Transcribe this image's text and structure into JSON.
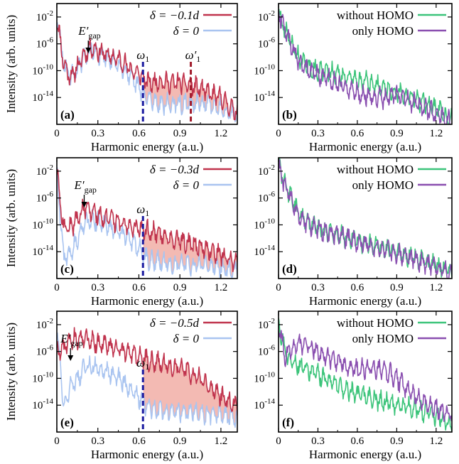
{
  "figure": {
    "x_axis_label": "Harmonic energy (a.u.)",
    "y_axis_label": "Intensity (arb. units)",
    "x_ticks": [
      "0",
      "0.3",
      "0.6",
      "0.9",
      "1.2"
    ],
    "y_ticks": [
      "10^-2",
      "10^-6",
      "10^-10",
      "10^-14"
    ],
    "colors": {
      "delta_curve": "#c0334d",
      "delta0_curve": "#a9c4f0",
      "fill": "#f0a9a0",
      "without_homo": "#3cc47a",
      "only_homo": "#8a4fb0",
      "marker": "#1a1aa0",
      "marker2": "#a01a2a"
    }
  },
  "chart_data": [
    {
      "panel": "(a)",
      "type": "line",
      "series": [
        {
          "name": "δ = −0.1d",
          "x": [
            0,
            0.05,
            0.1,
            0.15,
            0.2,
            0.25,
            0.3,
            0.35,
            0.4,
            0.45,
            0.5,
            0.55,
            0.6,
            0.65,
            0.7,
            0.75,
            0.8,
            0.85,
            0.9,
            0.95,
            1.0,
            1.05,
            1.1,
            1.15,
            1.2,
            1.25,
            1.3
          ],
          "y": [
            -2,
            -9,
            -11,
            -9.5,
            -7.5,
            -6.5,
            -7,
            -7.5,
            -8,
            -8.3,
            -9,
            -10,
            -10.5,
            -11.5,
            -11.8,
            -11.5,
            -11.8,
            -11.8,
            -11.8,
            -12,
            -12.3,
            -12.7,
            -13.2,
            -13.7,
            -14,
            -15,
            -16
          ]
        },
        {
          "name": "δ = 0",
          "x": [
            0,
            0.05,
            0.1,
            0.15,
            0.2,
            0.25,
            0.3,
            0.35,
            0.4,
            0.45,
            0.5,
            0.55,
            0.6,
            0.65,
            0.7,
            0.75,
            0.8,
            0.85,
            0.9,
            0.95,
            1.0,
            1.05,
            1.1,
            1.15,
            1.2,
            1.25,
            1.3
          ],
          "y": [
            -2,
            -9,
            -11,
            -9.8,
            -8,
            -7,
            -7.5,
            -8,
            -8.5,
            -9,
            -10,
            -11.5,
            -12.5,
            -14,
            -14.5,
            -14.8,
            -15,
            -15,
            -15,
            -15,
            -15,
            -15,
            -15,
            -15,
            -15.5,
            -16,
            -16.5
          ]
        }
      ],
      "annotations": [
        "E′gap",
        "ω1",
        "ω′1"
      ],
      "markers_x": {
        "omega1": 0.63,
        "omega1p": 0.98,
        "egap": 0.23
      },
      "xlim": [
        0,
        1.32
      ],
      "ylim_log10": [
        -18,
        0
      ]
    },
    {
      "panel": "(b)",
      "type": "line",
      "series": [
        {
          "name": "without HOMO",
          "x": [
            0,
            0.05,
            0.1,
            0.15,
            0.2,
            0.25,
            0.3,
            0.35,
            0.4,
            0.45,
            0.5,
            0.55,
            0.6,
            0.65,
            0.7,
            0.75,
            0.8,
            0.85,
            0.9,
            0.95,
            1.0,
            1.05,
            1.1,
            1.15,
            1.2,
            1.25,
            1.3
          ],
          "y": [
            -1,
            -4,
            -6,
            -8,
            -9,
            -9.7,
            -10,
            -10.2,
            -10.3,
            -10.5,
            -10.8,
            -11,
            -11.3,
            -11.6,
            -11.9,
            -12.2,
            -12.5,
            -12.9,
            -13.2,
            -13.6,
            -14,
            -14.4,
            -14.8,
            -15.3,
            -15.8,
            -16.5,
            -17
          ]
        },
        {
          "name": "only HOMO",
          "x": [
            0,
            0.05,
            0.1,
            0.15,
            0.2,
            0.25,
            0.3,
            0.35,
            0.4,
            0.45,
            0.5,
            0.55,
            0.6,
            0.65,
            0.7,
            0.75,
            0.8,
            0.85,
            0.9,
            0.95,
            1.0,
            1.05,
            1.1,
            1.15,
            1.2,
            1.25,
            1.3
          ],
          "y": [
            -1,
            -4,
            -6.3,
            -8.5,
            -9.5,
            -10.2,
            -10.6,
            -11,
            -11.5,
            -12,
            -12.5,
            -13,
            -13.3,
            -13.6,
            -13.8,
            -14,
            -14.1,
            -13.8,
            -13.5,
            -13.9,
            -14.5,
            -15,
            -15.5,
            -16,
            -16.5,
            -17,
            -17.5
          ]
        }
      ],
      "xlim": [
        0,
        1.32
      ],
      "ylim_log10": [
        -18,
        0
      ]
    },
    {
      "panel": "(c)",
      "type": "line",
      "series": [
        {
          "name": "δ = −0.3d",
          "x": [
            0,
            0.05,
            0.1,
            0.15,
            0.2,
            0.25,
            0.3,
            0.35,
            0.4,
            0.45,
            0.5,
            0.55,
            0.6,
            0.65,
            0.7,
            0.75,
            0.8,
            0.85,
            0.9,
            0.95,
            1.0,
            1.05,
            1.1,
            1.15,
            1.2,
            1.25,
            1.3
          ],
          "y": [
            -2,
            -10.5,
            -10.5,
            -9,
            -7.5,
            -8,
            -8.5,
            -9,
            -9.3,
            -9.6,
            -10,
            -10.3,
            -10.6,
            -10.8,
            -11,
            -11.3,
            -11.6,
            -12,
            -12.3,
            -12.7,
            -13,
            -13.3,
            -13.6,
            -14,
            -14.5,
            -15,
            -15.5
          ]
        },
        {
          "name": "δ = 0",
          "x": [
            0,
            0.05,
            0.1,
            0.15,
            0.2,
            0.25,
            0.3,
            0.35,
            0.4,
            0.45,
            0.5,
            0.55,
            0.6,
            0.65,
            0.7,
            0.75,
            0.8,
            0.85,
            0.9,
            0.95,
            1.0,
            1.05,
            1.1,
            1.15,
            1.2,
            1.25,
            1.3
          ],
          "y": [
            -2,
            -15,
            -14,
            -12,
            -10,
            -9.3,
            -9.5,
            -10,
            -10.5,
            -11,
            -11.5,
            -12.5,
            -13.5,
            -15,
            -15.3,
            -15.5,
            -15.6,
            -15.7,
            -15.8,
            -15.9,
            -16,
            -16,
            -16,
            -16.2,
            -16.3,
            -16.5,
            -16.8
          ]
        }
      ],
      "annotations": [
        "E′gap",
        "ω1"
      ],
      "markers_x": {
        "omega1": 0.63,
        "egap": 0.2
      },
      "xlim": [
        0,
        1.32
      ],
      "ylim_log10": [
        -18,
        0
      ]
    },
    {
      "panel": "(d)",
      "type": "line",
      "series": [
        {
          "name": "without HOMO",
          "x": [
            0,
            0.05,
            0.1,
            0.15,
            0.2,
            0.25,
            0.3,
            0.35,
            0.4,
            0.45,
            0.5,
            0.55,
            0.6,
            0.65,
            0.7,
            0.75,
            0.8,
            0.85,
            0.9,
            0.95,
            1.0,
            1.05,
            1.1,
            1.15,
            1.2,
            1.25,
            1.3
          ],
          "y": [
            -1,
            -4,
            -6,
            -8,
            -9.3,
            -10,
            -10.4,
            -10.8,
            -11.1,
            -11.4,
            -11.7,
            -12,
            -12.3,
            -12.6,
            -12.9,
            -13.2,
            -13.5,
            -13.8,
            -14.1,
            -14.4,
            -14.7,
            -15,
            -15.3,
            -15.6,
            -16,
            -16.5,
            -17
          ]
        },
        {
          "name": "only HOMO",
          "x": [
            0,
            0.05,
            0.1,
            0.15,
            0.2,
            0.25,
            0.3,
            0.35,
            0.4,
            0.45,
            0.5,
            0.55,
            0.6,
            0.65,
            0.7,
            0.75,
            0.8,
            0.85,
            0.9,
            0.95,
            1.0,
            1.05,
            1.1,
            1.15,
            1.2,
            1.25,
            1.3
          ],
          "y": [
            -1.5,
            -4.3,
            -6.3,
            -8.3,
            -9.5,
            -10.2,
            -10.6,
            -11,
            -11.3,
            -11.6,
            -11.9,
            -12.2,
            -12.5,
            -12.8,
            -13.1,
            -13.4,
            -13.7,
            -14,
            -14.3,
            -14.6,
            -14.9,
            -15.2,
            -15.5,
            -15.8,
            -16.2,
            -16.7,
            -17.2
          ]
        }
      ],
      "xlim": [
        0,
        1.32
      ],
      "ylim_log10": [
        -18,
        0
      ]
    },
    {
      "panel": "(e)",
      "type": "line",
      "series": [
        {
          "name": "δ = −0.5d",
          "x": [
            0,
            0.05,
            0.1,
            0.15,
            0.2,
            0.25,
            0.3,
            0.35,
            0.4,
            0.45,
            0.5,
            0.55,
            0.6,
            0.65,
            0.7,
            0.75,
            0.8,
            0.85,
            0.9,
            0.95,
            1.0,
            1.05,
            1.1,
            1.15,
            1.2,
            1.25,
            1.3
          ],
          "y": [
            -6,
            -5.5,
            -4,
            -4,
            -4.2,
            -4.5,
            -4.8,
            -5,
            -5.3,
            -5.6,
            -6,
            -6.3,
            -6.8,
            -7.2,
            -7.5,
            -7.7,
            -7.9,
            -8.1,
            -8.4,
            -8.9,
            -9.5,
            -10.2,
            -11,
            -11.8,
            -12.5,
            -13.2,
            -14
          ]
        },
        {
          "name": "δ = 0",
          "x": [
            0,
            0.05,
            0.1,
            0.15,
            0.2,
            0.25,
            0.3,
            0.35,
            0.4,
            0.45,
            0.5,
            0.55,
            0.6,
            0.65,
            0.7,
            0.75,
            0.8,
            0.85,
            0.9,
            0.95,
            1.0,
            1.05,
            1.1,
            1.15,
            1.2,
            1.25,
            1.3
          ],
          "y": [
            -2,
            -14,
            -11,
            -10,
            -8.5,
            -8,
            -8.5,
            -9,
            -9.5,
            -10,
            -11,
            -12,
            -13,
            -14,
            -14.5,
            -14.7,
            -14.8,
            -15,
            -15,
            -15,
            -15.1,
            -15.2,
            -15.3,
            -15.4,
            -15.6,
            -15.8,
            -16
          ]
        }
      ],
      "annotations": [
        "E′gap",
        "ω1"
      ],
      "markers_x": {
        "omega1": 0.63,
        "egap": 0.1
      },
      "xlim": [
        0,
        1.32
      ],
      "ylim_log10": [
        -18,
        0
      ]
    },
    {
      "panel": "(f)",
      "type": "line",
      "series": [
        {
          "name": "without HOMO",
          "x": [
            0,
            0.05,
            0.1,
            0.15,
            0.2,
            0.25,
            0.3,
            0.35,
            0.4,
            0.45,
            0.5,
            0.55,
            0.6,
            0.65,
            0.7,
            0.75,
            0.8,
            0.85,
            0.9,
            0.95,
            1.0,
            1.05,
            1.1,
            1.15,
            1.2,
            1.25,
            1.3
          ],
          "y": [
            -1.5,
            -6,
            -7.5,
            -8,
            -8.5,
            -9,
            -9.5,
            -10,
            -10.5,
            -11,
            -11.5,
            -12,
            -12.5,
            -12.8,
            -13,
            -13.2,
            -13.5,
            -13.8,
            -14,
            -14.2,
            -14.4,
            -14.6,
            -14.9,
            -15.2,
            -15.6,
            -16.2,
            -17
          ]
        },
        {
          "name": "only HOMO",
          "x": [
            0,
            0.05,
            0.1,
            0.15,
            0.2,
            0.25,
            0.3,
            0.35,
            0.4,
            0.45,
            0.5,
            0.55,
            0.6,
            0.65,
            0.7,
            0.75,
            0.8,
            0.85,
            0.9,
            0.95,
            1.0,
            1.05,
            1.1,
            1.15,
            1.2,
            1.25,
            1.3
          ],
          "y": [
            -2,
            -7,
            -5.3,
            -4.8,
            -5,
            -5.5,
            -6,
            -6.5,
            -7,
            -7.5,
            -8,
            -8.5,
            -8.7,
            -8.6,
            -8.5,
            -8.6,
            -8.8,
            -9.3,
            -10,
            -11,
            -12,
            -12.8,
            -13.5,
            -14,
            -14.5,
            -15,
            -15.5
          ]
        }
      ],
      "xlim": [
        0,
        1.32
      ],
      "ylim_log10": [
        -18,
        0
      ]
    }
  ]
}
